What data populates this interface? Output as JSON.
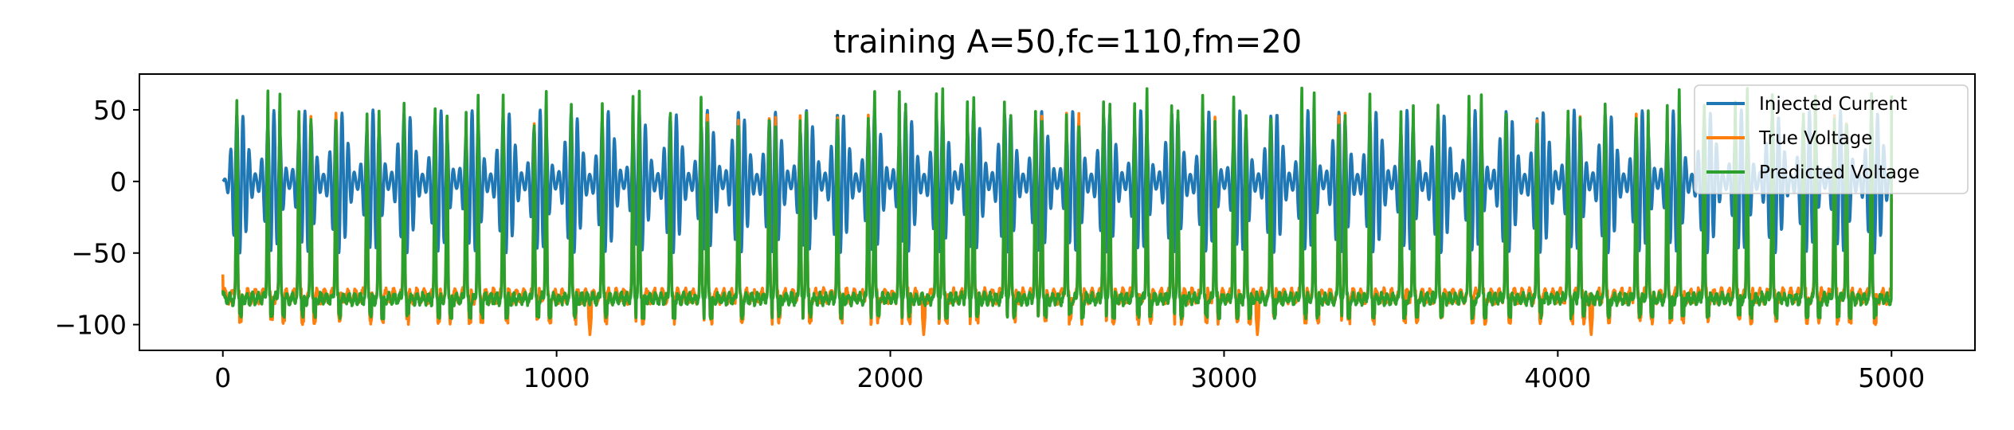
{
  "chart_data": {
    "type": "line",
    "title": "training A=50,fc=110,fm=20",
    "xlabel": "",
    "ylabel": "",
    "xlim": [
      -250,
      5250
    ],
    "ylim": [
      -118,
      75
    ],
    "xticks": [
      0,
      1000,
      2000,
      3000,
      4000,
      5000
    ],
    "yticks": [
      50,
      0,
      -50,
      -100
    ],
    "xtick_labels": [
      "0",
      "1000",
      "2000",
      "3000",
      "4000",
      "5000"
    ],
    "ytick_labels": [
      "50",
      "0",
      "−50",
      "−100"
    ],
    "grid": false,
    "legend_position": "top-right",
    "x_range": [
      0,
      5000
    ],
    "signal_params": {
      "A": 50,
      "fc": 110,
      "fm": 20
    },
    "series": [
      {
        "name": "Injected Current",
        "color": "#1f77b4",
        "values_summary": {
          "min": -48,
          "max": 50,
          "start": 0
        }
      },
      {
        "name": "True Voltage",
        "color": "#ff7f0e",
        "values_summary": {
          "min": -107,
          "max": 48,
          "baseline": -80,
          "start": -65
        }
      },
      {
        "name": "Predicted Voltage",
        "color": "#2ca02c",
        "values_summary": {
          "min": -100,
          "max": 66,
          "baseline": -82,
          "start": -76
        }
      }
    ]
  }
}
